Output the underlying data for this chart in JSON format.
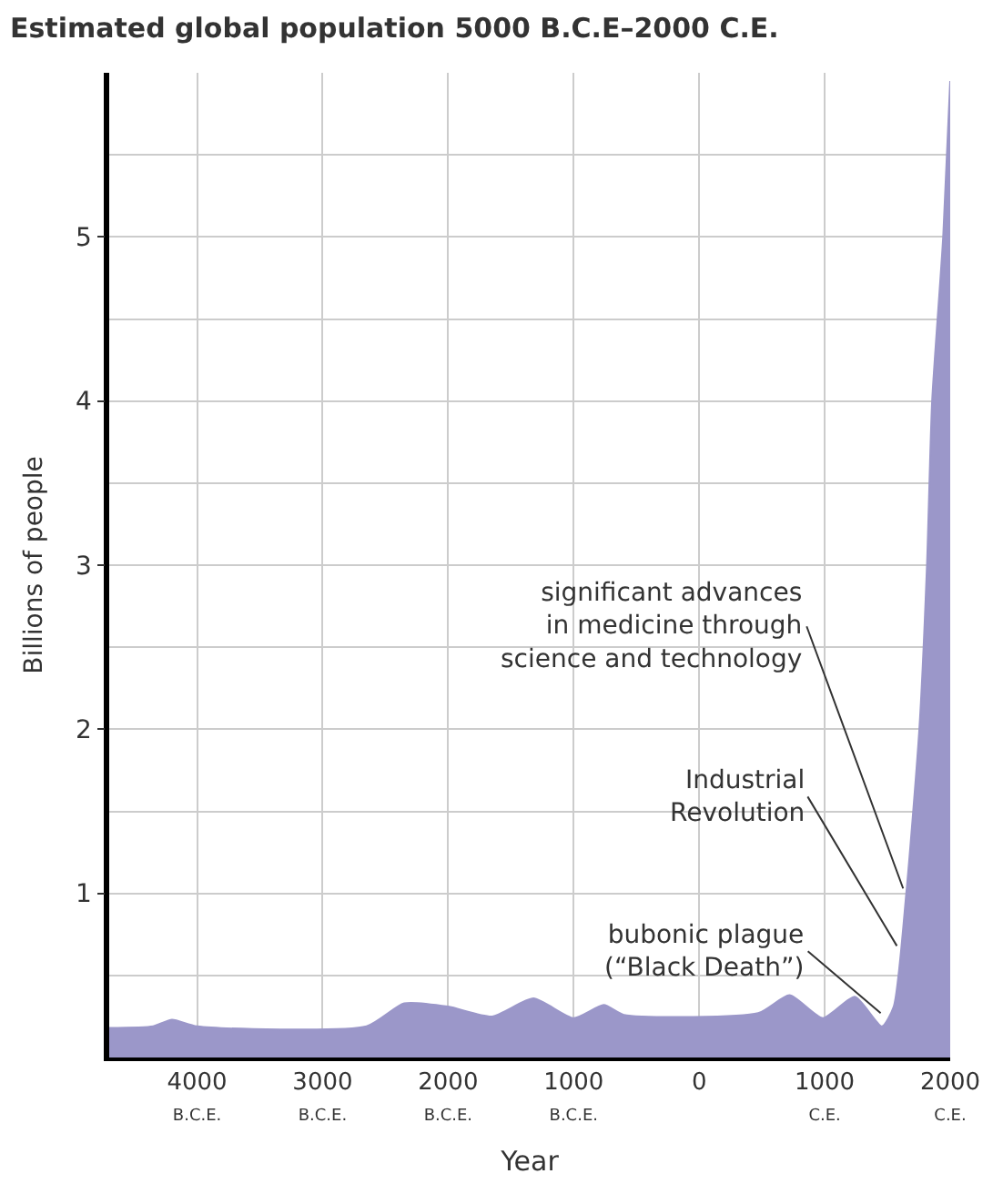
{
  "chart_data": {
    "type": "area",
    "title": "Estimated global population 5000 B.C.E–2000 C.E.",
    "xlabel": "Year",
    "ylabel": "Billions of people",
    "x": [
      -4700,
      -4350,
      -4200,
      -4000,
      -2650,
      -2350,
      -2000,
      -1650,
      -1320,
      -1000,
      -760,
      -600,
      470,
      720,
      985,
      1240,
      1456,
      1550,
      1650,
      1754,
      1815,
      1856,
      1944,
      2000
    ],
    "series": [
      {
        "color": "#9b97c9",
        "values": [
          0.18,
          0.19,
          0.23,
          0.19,
          0.19,
          0.33,
          0.31,
          0.25,
          0.36,
          0.24,
          0.32,
          0.26,
          0.27,
          0.38,
          0.24,
          0.37,
          0.19,
          0.31,
          1.0,
          2.0,
          3.0,
          4.0,
          5.0,
          5.95
        ]
      }
    ],
    "xlim": [
      -4700,
      2000
    ],
    "xticks": [
      {
        "value": -4000,
        "label": "4000\nB.C.E."
      },
      {
        "value": -3000,
        "label": "3000\nB.C.E."
      },
      {
        "value": -2000,
        "label": "2000\nB.C.E."
      },
      {
        "value": -1000,
        "label": "1000\nB.C.E."
      },
      0,
      {
        "value": 1000,
        "label": "1000\nC.E."
      },
      {
        "value": 2000,
        "label": "2000\nC.E."
      }
    ],
    "ylim": [
      0,
      6
    ],
    "yticks": [
      {
        "value": 0.5,
        "label": null
      },
      1,
      {
        "value": 1.5,
        "label": null
      },
      2,
      {
        "value": 2.5,
        "label": null
      },
      3,
      {
        "value": 3.5,
        "label": null
      },
      4,
      {
        "value": 4.5,
        "label": null
      },
      5,
      {
        "value": 5.5,
        "label": null
      }
    ],
    "grid": true,
    "annotations": [
      {
        "text": "significant advances\nin medicine through\nscience and technology",
        "x": 1625,
        "y": 1.03
      },
      {
        "text": "Industrial\nRevolution",
        "x": 1575,
        "y": 0.68
      },
      {
        "text": "bubonic plague\n(“Black Death”)",
        "x": 1446,
        "y": 0.27
      }
    ]
  }
}
